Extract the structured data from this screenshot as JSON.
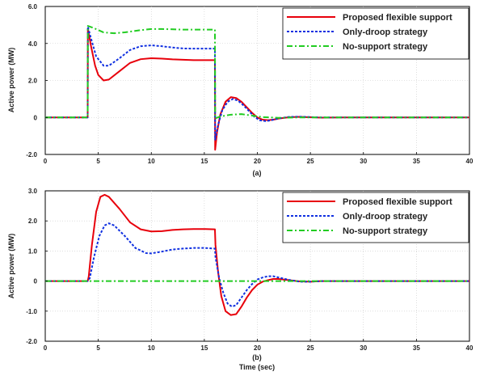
{
  "chart_data": [
    {
      "type": "line",
      "panel_label": "(a)",
      "xlabel": "",
      "ylabel": "Active power (MW)",
      "xlim": [
        0,
        40
      ],
      "ylim": [
        -2,
        6
      ],
      "xticks": [
        0,
        5,
        10,
        15,
        20,
        25,
        30,
        35,
        40
      ],
      "xtick_labels": [
        "0",
        "5",
        "10",
        "15",
        "20",
        "25",
        "30",
        "35",
        "40"
      ],
      "yticks": [
        -2,
        0,
        2,
        4,
        6
      ],
      "ytick_labels": [
        "-2.0",
        "0",
        "2.0",
        "4.0",
        "6.0"
      ],
      "grid": true,
      "legend_position": "top-right",
      "series": [
        {
          "name": "Proposed flexible support",
          "color": "#e8000b",
          "dash": "solid",
          "points": [
            [
              0,
              0
            ],
            [
              4,
              0
            ],
            [
              4.02,
              4.8
            ],
            [
              4.3,
              3.9
            ],
            [
              4.7,
              2.8
            ],
            [
              5,
              2.3
            ],
            [
              5.5,
              2.0
            ],
            [
              6,
              2.05
            ],
            [
              7,
              2.5
            ],
            [
              8,
              2.95
            ],
            [
              9,
              3.15
            ],
            [
              10,
              3.2
            ],
            [
              11,
              3.18
            ],
            [
              12,
              3.14
            ],
            [
              13,
              3.12
            ],
            [
              14,
              3.1
            ],
            [
              16,
              3.1
            ],
            [
              16.02,
              -1.75
            ],
            [
              16.2,
              -0.8
            ],
            [
              16.5,
              0.15
            ],
            [
              17,
              0.85
            ],
            [
              17.5,
              1.1
            ],
            [
              18,
              1.05
            ],
            [
              18.5,
              0.85
            ],
            [
              19,
              0.55
            ],
            [
              19.5,
              0.25
            ],
            [
              20,
              0.0
            ],
            [
              20.5,
              -0.12
            ],
            [
              21,
              -0.15
            ],
            [
              21.5,
              -0.12
            ],
            [
              22,
              -0.06
            ],
            [
              23,
              0.01
            ],
            [
              24,
              0.03
            ],
            [
              25,
              0.01
            ],
            [
              26,
              -0.01
            ],
            [
              28,
              0
            ],
            [
              40,
              0
            ]
          ]
        },
        {
          "name": "Only-droop strategy",
          "color": "#1030e0",
          "dash": "dotted",
          "points": [
            [
              0,
              0
            ],
            [
              4,
              0
            ],
            [
              4.02,
              4.9
            ],
            [
              4.3,
              4.3
            ],
            [
              4.8,
              3.3
            ],
            [
              5.5,
              2.8
            ],
            [
              6,
              2.8
            ],
            [
              7,
              3.2
            ],
            [
              8,
              3.65
            ],
            [
              9,
              3.85
            ],
            [
              10,
              3.9
            ],
            [
              11,
              3.85
            ],
            [
              12,
              3.78
            ],
            [
              13,
              3.73
            ],
            [
              14,
              3.72
            ],
            [
              16,
              3.72
            ],
            [
              16.02,
              -1.2
            ],
            [
              16.3,
              -0.4
            ],
            [
              16.7,
              0.4
            ],
            [
              17.2,
              0.85
            ],
            [
              17.7,
              1.0
            ],
            [
              18.2,
              0.9
            ],
            [
              18.7,
              0.65
            ],
            [
              19.2,
              0.35
            ],
            [
              19.7,
              0.05
            ],
            [
              20.2,
              -0.15
            ],
            [
              20.8,
              -0.2
            ],
            [
              21.3,
              -0.15
            ],
            [
              22,
              -0.05
            ],
            [
              23,
              0.03
            ],
            [
              24,
              0.04
            ],
            [
              25,
              0.02
            ],
            [
              26,
              0
            ],
            [
              40,
              0
            ]
          ]
        },
        {
          "name": "No-support strategy",
          "color": "#22cc22",
          "dash": "dashdot",
          "points": [
            [
              0,
              0
            ],
            [
              4,
              0
            ],
            [
              4.02,
              4.95
            ],
            [
              4.5,
              4.85
            ],
            [
              5.5,
              4.6
            ],
            [
              6.5,
              4.55
            ],
            [
              7.5,
              4.6
            ],
            [
              9,
              4.72
            ],
            [
              10,
              4.78
            ],
            [
              11,
              4.78
            ],
            [
              13,
              4.75
            ],
            [
              16,
              4.75
            ],
            [
              16.02,
              -0.05
            ],
            [
              16.5,
              0.05
            ],
            [
              17.5,
              0.15
            ],
            [
              18.5,
              0.18
            ],
            [
              19.5,
              0.1
            ],
            [
              20.5,
              0.02
            ],
            [
              22,
              -0.02
            ],
            [
              24,
              0
            ],
            [
              40,
              0
            ]
          ]
        }
      ]
    },
    {
      "type": "line",
      "panel_label": "(b)",
      "xlabel": "Time (sec)",
      "ylabel": "Active power (MW)",
      "xlim": [
        0,
        40
      ],
      "ylim": [
        -2,
        3
      ],
      "xticks": [
        0,
        5,
        10,
        15,
        20,
        25,
        30,
        35,
        40
      ],
      "xtick_labels": [
        "0",
        "5",
        "10",
        "15",
        "20",
        "25",
        "30",
        "35",
        "40"
      ],
      "yticks": [
        -2,
        -1,
        0,
        1,
        2,
        3
      ],
      "ytick_labels": [
        "-2.0",
        "-1.0",
        "0",
        "1.0",
        "2.0",
        "3.0"
      ],
      "grid": true,
      "legend_position": "top-right",
      "series": [
        {
          "name": "Proposed flexible support",
          "color": "#e8000b",
          "dash": "solid",
          "points": [
            [
              0,
              0
            ],
            [
              4,
              0
            ],
            [
              4.1,
              0.15
            ],
            [
              4.4,
              1.2
            ],
            [
              4.8,
              2.3
            ],
            [
              5.2,
              2.8
            ],
            [
              5.6,
              2.87
            ],
            [
              6,
              2.8
            ],
            [
              7,
              2.4
            ],
            [
              8,
              1.95
            ],
            [
              9,
              1.72
            ],
            [
              10,
              1.65
            ],
            [
              11,
              1.66
            ],
            [
              12,
              1.7
            ],
            [
              13,
              1.72
            ],
            [
              14,
              1.73
            ],
            [
              15,
              1.73
            ],
            [
              16,
              1.72
            ],
            [
              16.05,
              1.2
            ],
            [
              16.3,
              0.3
            ],
            [
              16.6,
              -0.5
            ],
            [
              17,
              -1.0
            ],
            [
              17.5,
              -1.13
            ],
            [
              18,
              -1.1
            ],
            [
              18.5,
              -0.85
            ],
            [
              19,
              -0.55
            ],
            [
              19.5,
              -0.3
            ],
            [
              20,
              -0.12
            ],
            [
              20.5,
              -0.02
            ],
            [
              21,
              0.03
            ],
            [
              21.5,
              0.07
            ],
            [
              22,
              0.07
            ],
            [
              23,
              0.03
            ],
            [
              24,
              -0.01
            ],
            [
              25,
              -0.02
            ],
            [
              26,
              0
            ],
            [
              40,
              0
            ]
          ]
        },
        {
          "name": "Only-droop strategy",
          "color": "#1030e0",
          "dash": "dotted",
          "points": [
            [
              0,
              0
            ],
            [
              4,
              0
            ],
            [
              4.2,
              0.1
            ],
            [
              4.6,
              0.8
            ],
            [
              5.1,
              1.5
            ],
            [
              5.6,
              1.85
            ],
            [
              6,
              1.92
            ],
            [
              6.5,
              1.85
            ],
            [
              7.5,
              1.5
            ],
            [
              8.5,
              1.1
            ],
            [
              9.5,
              0.93
            ],
            [
              10,
              0.92
            ],
            [
              11,
              0.98
            ],
            [
              12,
              1.05
            ],
            [
              13,
              1.08
            ],
            [
              14,
              1.1
            ],
            [
              15,
              1.1
            ],
            [
              16,
              1.08
            ],
            [
              16.05,
              0.8
            ],
            [
              16.4,
              0.1
            ],
            [
              16.8,
              -0.4
            ],
            [
              17.2,
              -0.75
            ],
            [
              17.6,
              -0.85
            ],
            [
              18,
              -0.8
            ],
            [
              18.5,
              -0.55
            ],
            [
              19,
              -0.3
            ],
            [
              19.5,
              -0.1
            ],
            [
              20,
              0.05
            ],
            [
              20.5,
              0.12
            ],
            [
              21,
              0.16
            ],
            [
              21.5,
              0.16
            ],
            [
              22,
              0.12
            ],
            [
              23,
              0.04
            ],
            [
              24,
              -0.02
            ],
            [
              25,
              -0.02
            ],
            [
              26,
              0
            ],
            [
              40,
              0
            ]
          ]
        },
        {
          "name": "No-support strategy",
          "color": "#22cc22",
          "dash": "dashdot",
          "points": [
            [
              0,
              0
            ],
            [
              40,
              0
            ]
          ]
        }
      ]
    }
  ]
}
